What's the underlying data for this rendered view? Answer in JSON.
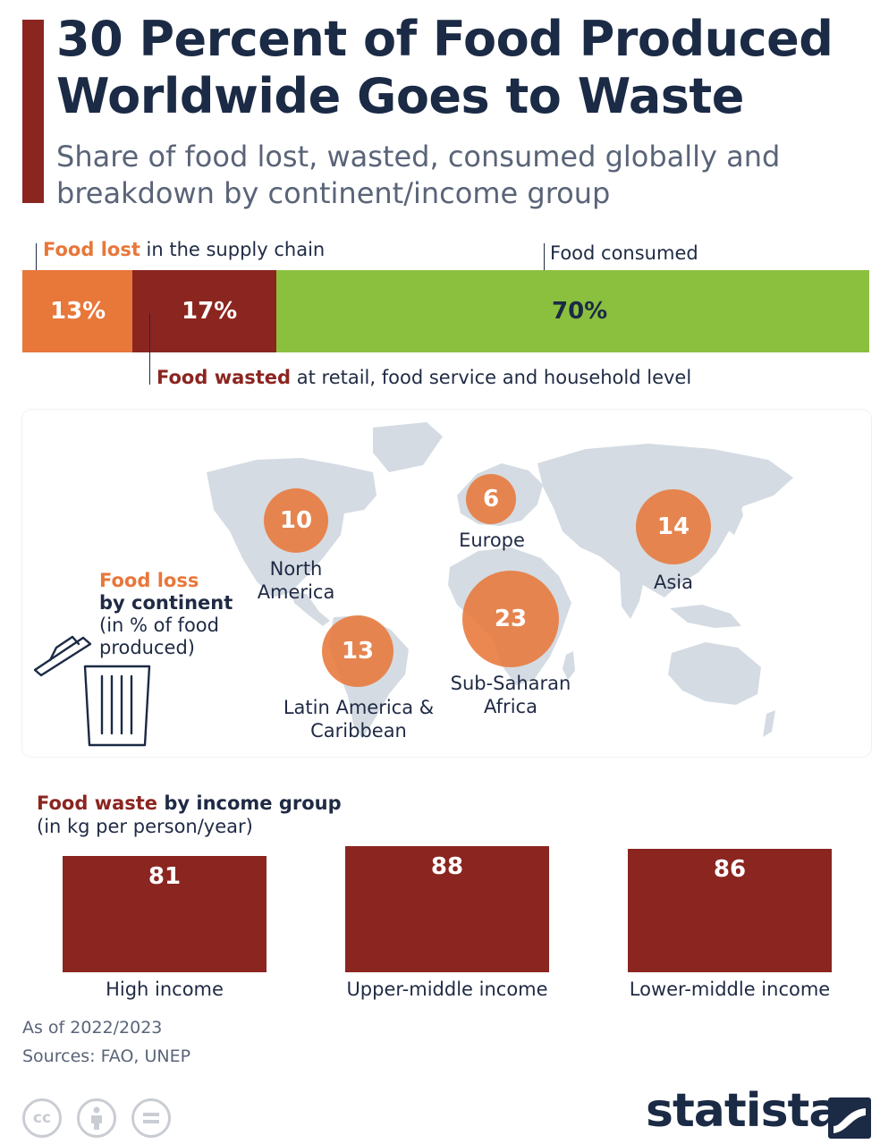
{
  "header": {
    "title": "30 Percent of Food Produced Worldwide Goes to Waste",
    "subtitle": "Share of food lost, wasted, consumed globally and breakdown by continent/income group"
  },
  "colors": {
    "lost": "#e8773a",
    "wasted": "#8b2520",
    "consumed": "#8bc03f",
    "dark_text": "#1b2a45",
    "map_land": "#d4dbe2"
  },
  "icons": [
    "trash-can-icon",
    "creative-commons-icon",
    "attribution-icon",
    "no-derivatives-icon",
    "statista-logo-icon"
  ],
  "labels": {
    "lost_hl": "Food lost",
    "lost_rest": " in the supply chain",
    "consumed": "Food consumed",
    "wasted_hl": "Food wasted",
    "wasted_rest": " at retail, food service and household level"
  },
  "map_legend": {
    "line1": "Food loss",
    "line2": "by continent",
    "line3": "(in % of food",
    "line4": "produced)"
  },
  "income": {
    "title_hl": "Food waste",
    "title_rest": " by income group",
    "subtitle": "(in kg per person/year)"
  },
  "chart_data": [
    {
      "type": "bar",
      "stacked": true,
      "orientation": "horizontal",
      "unit": "%",
      "series": [
        {
          "name": "Food lost",
          "value": 13,
          "label": "13%"
        },
        {
          "name": "Food wasted",
          "value": 17,
          "label": "17%"
        },
        {
          "name": "Food consumed",
          "value": 70,
          "label": "70%"
        }
      ]
    },
    {
      "type": "scatter",
      "unit": "% of food produced",
      "points": [
        {
          "region": "North America",
          "line1": "North",
          "line2": "America",
          "value": 10,
          "label": "10"
        },
        {
          "region": "Europe",
          "line1": "Europe",
          "line2": "",
          "value": 6,
          "label": "6"
        },
        {
          "region": "Asia",
          "line1": "Asia",
          "line2": "",
          "value": 14,
          "label": "14"
        },
        {
          "region": "Latin America & Caribbean",
          "line1": "Latin America &",
          "line2": "Caribbean",
          "value": 13,
          "label": "13"
        },
        {
          "region": "Sub-Saharan Africa",
          "line1": "Sub-Saharan",
          "line2": "Africa",
          "value": 23,
          "label": "23"
        }
      ]
    },
    {
      "type": "bar",
      "unit": "kg per person/year",
      "categories": [
        "High income",
        "Upper-middle income",
        "Lower-middle income"
      ],
      "values": [
        81,
        88,
        86
      ],
      "labels": [
        "81",
        "88",
        "86"
      ]
    }
  ],
  "footer": {
    "date_note": "As of 2022/2023",
    "sources": "Sources: FAO, UNEP",
    "cc1": "cc",
    "brand": "statista"
  }
}
